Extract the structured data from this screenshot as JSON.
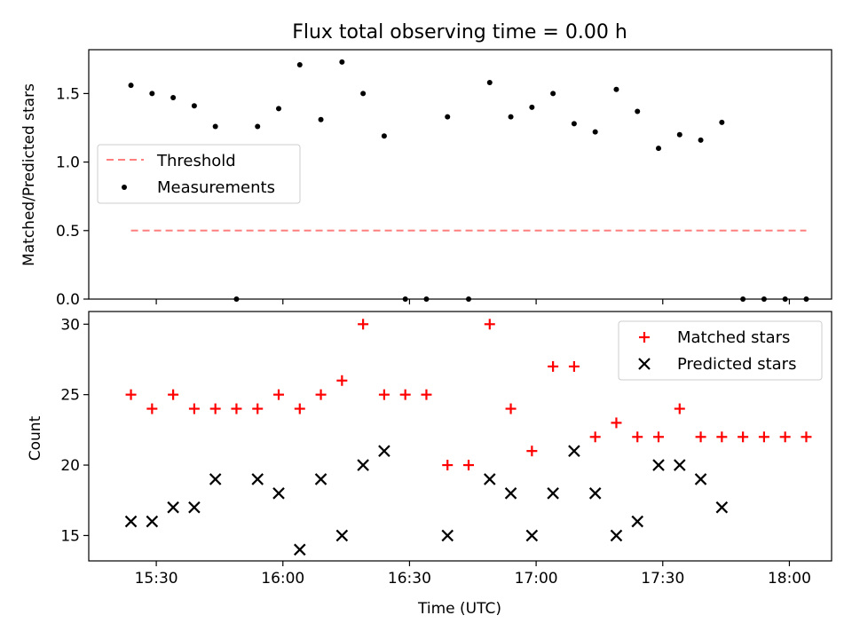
{
  "chart_data": [
    {
      "type": "scatter",
      "title": "Flux total observing time = 0.00 h",
      "ylabel": "Matched/Predicted stars",
      "xlabel": "",
      "ylim": [
        0,
        1.82
      ],
      "yticks": [
        "0.0",
        "0.5",
        "1.0",
        "1.5"
      ],
      "ytick_values": [
        0,
        0.5,
        1.0,
        1.5
      ],
      "grid": false,
      "legend": "center-left",
      "threshold": {
        "name": "Threshold",
        "value": 0.5,
        "x_start": "15:24",
        "x_end": "18:04",
        "color": "#ff7f7f",
        "style": "dashed"
      },
      "series": [
        {
          "name": "Measurements",
          "color": "#000000",
          "marker": "dot",
          "x": [
            "15:24",
            "15:29",
            "15:34",
            "15:39",
            "15:44",
            "15:49",
            "15:54",
            "15:59",
            "16:04",
            "16:09",
            "16:14",
            "16:19",
            "16:24",
            "16:29",
            "16:34",
            "16:39",
            "16:44",
            "16:49",
            "16:54",
            "16:59",
            "17:04",
            "17:09",
            "17:14",
            "17:19",
            "17:24",
            "17:29",
            "17:34",
            "17:39",
            "17:44",
            "17:49",
            "17:54",
            "17:59",
            "18:04"
          ],
          "y": [
            1.56,
            1.5,
            1.47,
            1.41,
            1.26,
            0.0,
            1.26,
            1.39,
            1.71,
            1.31,
            1.73,
            1.5,
            1.19,
            0.0,
            0.0,
            1.33,
            0.0,
            1.58,
            1.33,
            1.4,
            1.5,
            1.28,
            1.22,
            1.53,
            1.37,
            1.1,
            1.2,
            1.16,
            1.29,
            0.0,
            0.0,
            0.0,
            0.0
          ]
        }
      ]
    },
    {
      "type": "scatter",
      "title": "",
      "ylabel": "Count",
      "xlabel": "Time (UTC)",
      "ylim": [
        13.2,
        30.9
      ],
      "yticks": [
        "15",
        "20",
        "25",
        "30"
      ],
      "ytick_values": [
        15,
        20,
        25,
        30
      ],
      "grid": false,
      "legend": "top-right",
      "series": [
        {
          "name": "Matched stars",
          "color": "#ff0000",
          "marker": "plus",
          "x": [
            "15:24",
            "15:29",
            "15:34",
            "15:39",
            "15:44",
            "15:49",
            "15:54",
            "15:59",
            "16:04",
            "16:09",
            "16:14",
            "16:19",
            "16:24",
            "16:29",
            "16:34",
            "16:39",
            "16:44",
            "16:49",
            "16:54",
            "16:59",
            "17:04",
            "17:09",
            "17:14",
            "17:19",
            "17:24",
            "17:29",
            "17:34",
            "17:39",
            "17:44",
            "17:49",
            "17:54",
            "17:59",
            "18:04"
          ],
          "y": [
            25,
            24,
            25,
            24,
            24,
            24,
            24,
            25,
            24,
            25,
            26,
            30,
            25,
            25,
            25,
            20,
            20,
            30,
            24,
            21,
            27,
            27,
            22,
            23,
            22,
            22,
            24,
            22,
            22,
            22,
            22,
            22,
            22
          ]
        },
        {
          "name": "Predicted stars",
          "color": "#000000",
          "marker": "x",
          "x": [
            "15:24",
            "15:29",
            "15:34",
            "15:39",
            "15:44",
            "15:54",
            "15:59",
            "16:04",
            "16:09",
            "16:14",
            "16:19",
            "16:24",
            "16:39",
            "16:49",
            "16:54",
            "16:59",
            "17:04",
            "17:09",
            "17:14",
            "17:19",
            "17:24",
            "17:29",
            "17:34",
            "17:39",
            "17:44"
          ],
          "y": [
            16,
            16,
            17,
            17,
            19,
            19,
            18,
            14,
            19,
            15,
            20,
            21,
            15,
            19,
            18,
            15,
            18,
            21,
            18,
            15,
            16,
            20,
            20,
            19,
            17
          ]
        }
      ]
    }
  ],
  "x_axis": {
    "domain": [
      "15:14",
      "18:10"
    ],
    "tick_values": [
      "15:30",
      "16:00",
      "16:30",
      "17:00",
      "17:30",
      "18:00"
    ],
    "tick_labels": [
      "15:30",
      "16:00",
      "16:30",
      "17:00",
      "17:30",
      "18:00"
    ]
  }
}
